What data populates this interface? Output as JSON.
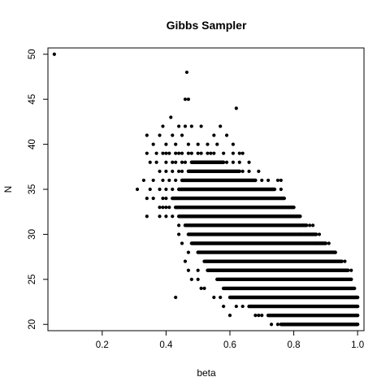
{
  "chart_data": {
    "type": "scatter",
    "title": "Gibbs Sampler",
    "xlabel": "beta",
    "ylabel": "N",
    "xlim": [
      0.03,
      1.02
    ],
    "ylim": [
      19.3,
      50.7
    ],
    "xticks": [
      0.2,
      0.4,
      0.6,
      0.8,
      1.0
    ],
    "xtick_labels": [
      "0.2",
      "0.4",
      "0.6",
      "0.8",
      "1.0"
    ],
    "yticks": [
      20,
      25,
      30,
      35,
      40,
      45,
      50
    ],
    "ytick_labels": [
      "20",
      "25",
      "30",
      "35",
      "40",
      "45",
      "50"
    ],
    "grid": false,
    "marker_color": "#000000",
    "rows": [
      {
        "y": 20,
        "x_start": 0.76,
        "x_end": 1.0
      },
      {
        "y": 21,
        "x_start": 0.72,
        "x_end": 1.0
      },
      {
        "y": 22,
        "x_start": 0.66,
        "x_end": 1.0
      },
      {
        "y": 23,
        "x_start": 0.6,
        "x_end": 1.0
      },
      {
        "y": 24,
        "x_start": 0.58,
        "x_end": 0.99
      },
      {
        "y": 25,
        "x_start": 0.56,
        "x_end": 0.98
      },
      {
        "y": 26,
        "x_start": 0.53,
        "x_end": 0.97
      },
      {
        "y": 27,
        "x_start": 0.52,
        "x_end": 0.95
      },
      {
        "y": 28,
        "x_start": 0.5,
        "x_end": 0.93
      },
      {
        "y": 29,
        "x_start": 0.48,
        "x_end": 0.9
      },
      {
        "y": 30,
        "x_start": 0.47,
        "x_end": 0.87
      },
      {
        "y": 31,
        "x_start": 0.46,
        "x_end": 0.84
      },
      {
        "y": 32,
        "x_start": 0.44,
        "x_end": 0.82
      },
      {
        "y": 33,
        "x_start": 0.43,
        "x_end": 0.8
      },
      {
        "y": 34,
        "x_start": 0.42,
        "x_end": 0.77
      },
      {
        "y": 35,
        "x_start": 0.44,
        "x_end": 0.74
      },
      {
        "y": 36,
        "x_start": 0.45,
        "x_end": 0.68
      },
      {
        "y": 37,
        "x_start": 0.47,
        "x_end": 0.63
      },
      {
        "y": 38,
        "x_start": 0.48,
        "x_end": 0.58
      }
    ],
    "points": [
      [
        0.05,
        50
      ],
      [
        0.465,
        48
      ],
      [
        0.46,
        45
      ],
      [
        0.47,
        45
      ],
      [
        0.62,
        44
      ],
      [
        0.415,
        43
      ],
      [
        0.39,
        42
      ],
      [
        0.44,
        42
      ],
      [
        0.46,
        42
      ],
      [
        0.48,
        42
      ],
      [
        0.51,
        42
      ],
      [
        0.57,
        42
      ],
      [
        0.34,
        41
      ],
      [
        0.38,
        41
      ],
      [
        0.42,
        41
      ],
      [
        0.45,
        41
      ],
      [
        0.55,
        41
      ],
      [
        0.59,
        41
      ],
      [
        0.36,
        40
      ],
      [
        0.4,
        40
      ],
      [
        0.43,
        40
      ],
      [
        0.47,
        40
      ],
      [
        0.5,
        40
      ],
      [
        0.53,
        40
      ],
      [
        0.56,
        40
      ],
      [
        0.61,
        40
      ],
      [
        0.34,
        39
      ],
      [
        0.37,
        39
      ],
      [
        0.39,
        39
      ],
      [
        0.4,
        39
      ],
      [
        0.41,
        39
      ],
      [
        0.43,
        39
      ],
      [
        0.44,
        39
      ],
      [
        0.45,
        39
      ],
      [
        0.47,
        39
      ],
      [
        0.48,
        39
      ],
      [
        0.5,
        39
      ],
      [
        0.51,
        39
      ],
      [
        0.53,
        39
      ],
      [
        0.54,
        39
      ],
      [
        0.55,
        39
      ],
      [
        0.58,
        39
      ],
      [
        0.61,
        39
      ],
      [
        0.63,
        39
      ],
      [
        0.64,
        39
      ],
      [
        0.35,
        38
      ],
      [
        0.37,
        38
      ],
      [
        0.4,
        38
      ],
      [
        0.42,
        38
      ],
      [
        0.43,
        38
      ],
      [
        0.45,
        38
      ],
      [
        0.46,
        38
      ],
      [
        0.59,
        38
      ],
      [
        0.61,
        38
      ],
      [
        0.63,
        38
      ],
      [
        0.66,
        38
      ],
      [
        0.38,
        37
      ],
      [
        0.4,
        37
      ],
      [
        0.42,
        37
      ],
      [
        0.44,
        37
      ],
      [
        0.45,
        37
      ],
      [
        0.64,
        37
      ],
      [
        0.66,
        37
      ],
      [
        0.69,
        37
      ],
      [
        0.33,
        36
      ],
      [
        0.36,
        36
      ],
      [
        0.39,
        36
      ],
      [
        0.41,
        36
      ],
      [
        0.43,
        36
      ],
      [
        0.7,
        36
      ],
      [
        0.72,
        36
      ],
      [
        0.75,
        36
      ],
      [
        0.76,
        36
      ],
      [
        0.31,
        35
      ],
      [
        0.35,
        35
      ],
      [
        0.38,
        35
      ],
      [
        0.4,
        35
      ],
      [
        0.42,
        35
      ],
      [
        0.76,
        35
      ],
      [
        0.34,
        34
      ],
      [
        0.36,
        34
      ],
      [
        0.39,
        34
      ],
      [
        0.4,
        34
      ],
      [
        0.38,
        33
      ],
      [
        0.39,
        33
      ],
      [
        0.4,
        33
      ],
      [
        0.41,
        33
      ],
      [
        0.34,
        32
      ],
      [
        0.38,
        32
      ],
      [
        0.4,
        32
      ],
      [
        0.42,
        32
      ],
      [
        0.82,
        30
      ],
      [
        0.85,
        30
      ],
      [
        0.86,
        30
      ],
      [
        0.87,
        30
      ],
      [
        0.88,
        30
      ],
      [
        0.87,
        29
      ],
      [
        0.9,
        29
      ],
      [
        0.91,
        29
      ],
      [
        0.44,
        31
      ],
      [
        0.86,
        31
      ],
      [
        0.85,
        31
      ],
      [
        0.93,
        28
      ],
      [
        0.95,
        27
      ],
      [
        0.96,
        27
      ],
      [
        0.98,
        26
      ],
      [
        0.43,
        23
      ],
      [
        0.48,
        25
      ],
      [
        0.5,
        25
      ],
      [
        0.51,
        24
      ],
      [
        0.47,
        26
      ],
      [
        0.5,
        26
      ],
      [
        0.52,
        24
      ],
      [
        0.55,
        23
      ],
      [
        0.57,
        23
      ],
      [
        0.64,
        22
      ],
      [
        0.62,
        22
      ],
      [
        0.68,
        21
      ],
      [
        0.69,
        21
      ],
      [
        0.7,
        21
      ],
      [
        0.73,
        20
      ],
      [
        0.75,
        20
      ],
      [
        0.58,
        22
      ],
      [
        0.6,
        21
      ],
      [
        0.46,
        27
      ],
      [
        0.47,
        28
      ],
      [
        0.45,
        29
      ],
      [
        0.44,
        30
      ]
    ]
  }
}
